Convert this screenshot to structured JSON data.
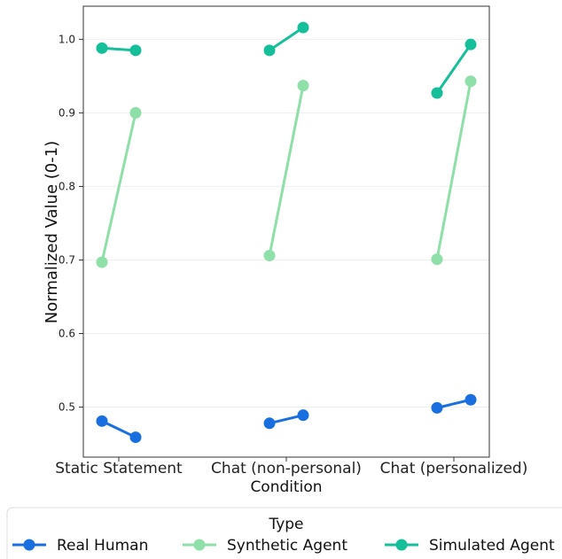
{
  "chart_data": {
    "type": "line",
    "xlabel": "Condition",
    "ylabel": "Normalized Value (0-1)",
    "categories": [
      "Static Statement",
      "Chat (non-personal)",
      "Chat (personalized)"
    ],
    "ylim": [
      0.432,
      1.045
    ],
    "yticks": [
      "0.5",
      "0.6",
      "0.7",
      "0.8",
      "0.9",
      "1.0"
    ],
    "grid": "horizontal, light",
    "legend": {
      "title": "Type",
      "placement": "bottom",
      "entries": [
        "Real Human",
        "Synthetic Agent",
        "Simulated Agent"
      ]
    },
    "series": [
      {
        "name": "Real Human",
        "color": "#1a6fe0",
        "values": [
          [
            0.481,
            0.459
          ],
          [
            0.478,
            0.489
          ],
          [
            0.499,
            0.51
          ]
        ]
      },
      {
        "name": "Synthetic Agent",
        "color": "#8fe0a8",
        "values": [
          [
            0.697,
            0.9
          ],
          [
            0.706,
            0.937
          ],
          [
            0.701,
            0.943
          ]
        ]
      },
      {
        "name": "Simulated Agent",
        "color": "#14bf9a",
        "values": [
          [
            0.988,
            0.985
          ],
          [
            0.985,
            1.016
          ],
          [
            0.927,
            0.993
          ]
        ]
      }
    ]
  }
}
